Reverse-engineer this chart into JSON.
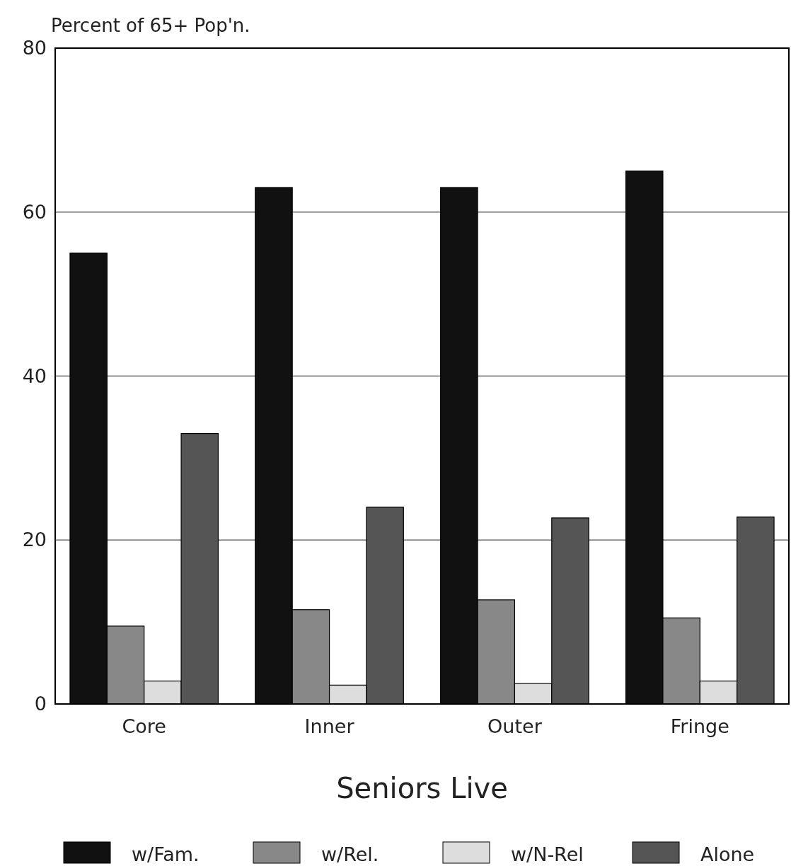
{
  "chart_data": {
    "type": "bar",
    "ylabel": "Percent of 65+ Pop'n.",
    "xlabel": "Seniors Live",
    "categories": [
      "Core",
      "Inner",
      "Outer",
      "Fringe"
    ],
    "series": [
      {
        "name": "w/Fam.",
        "color": "#111111",
        "values": [
          55,
          63,
          63,
          65
        ]
      },
      {
        "name": "w/Rel.",
        "color": "#888888",
        "values": [
          9.5,
          11.5,
          12.7,
          10.5
        ]
      },
      {
        "name": "w/N-Rel",
        "color": "#dddddd",
        "values": [
          2.8,
          2.3,
          2.5,
          2.8
        ]
      },
      {
        "name": "Alone",
        "color": "#555555",
        "values": [
          33,
          24,
          22.7,
          22.8
        ]
      }
    ],
    "ylim": [
      0,
      80
    ],
    "yticks": [
      0,
      20,
      40,
      60,
      80
    ],
    "grid": "y",
    "legend": "bottom"
  }
}
